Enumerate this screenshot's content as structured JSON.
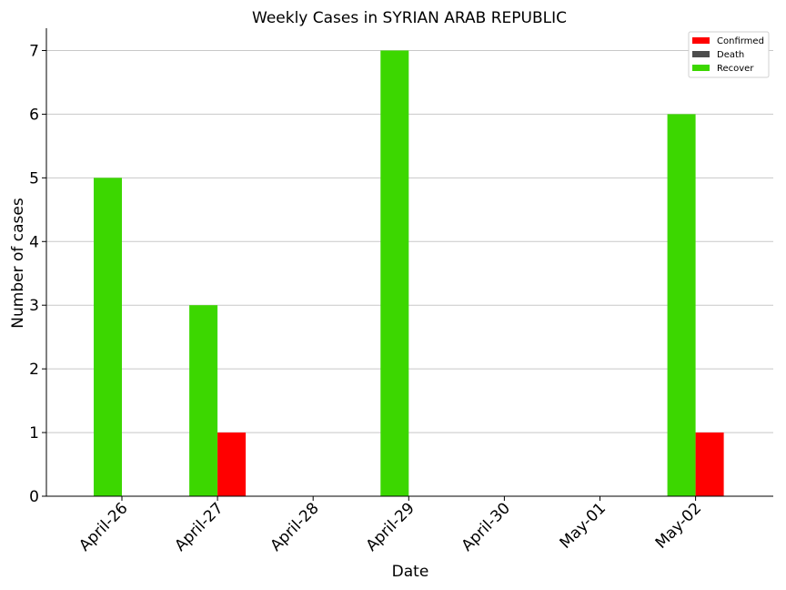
{
  "chart_data": {
    "type": "bar",
    "title": "Weekly Cases in SYRIAN ARAB REPUBLIC",
    "xlabel": "Date",
    "ylabel": "Number of cases",
    "categories": [
      "April-26",
      "April-27",
      "April-28",
      "April-29",
      "April-30",
      "May-01",
      "May-02"
    ],
    "yticks": [
      "0",
      "1",
      "2",
      "3",
      "4",
      "5",
      "6",
      "7"
    ],
    "ylim": [
      0,
      7.35
    ],
    "grid": "horizontal",
    "legend_position": "top-right",
    "series": [
      {
        "name": "Confirmed",
        "color": "#ff0000",
        "values": [
          0,
          1,
          0,
          0,
          0,
          0,
          1
        ]
      },
      {
        "name": "Death",
        "color": "#4d4d4d",
        "values": [
          0,
          0,
          0,
          0,
          0,
          0,
          0
        ]
      },
      {
        "name": "Recover",
        "color": "#3cd700",
        "values": [
          5,
          3,
          0,
          7,
          0,
          0,
          6
        ]
      }
    ]
  }
}
